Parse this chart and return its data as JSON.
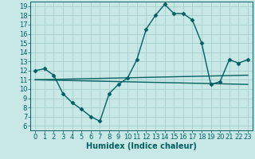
{
  "xlabel": "Humidex (Indice chaleur)",
  "bg_color": "#c8e8e8",
  "grid_color": "#a0c8c8",
  "line_color": "#006060",
  "xlim": [
    -0.5,
    23.5
  ],
  "ylim": [
    5.5,
    19.5
  ],
  "xticks": [
    0,
    1,
    2,
    3,
    4,
    5,
    6,
    7,
    8,
    9,
    10,
    11,
    12,
    13,
    14,
    15,
    16,
    17,
    18,
    19,
    20,
    21,
    22,
    23
  ],
  "yticks": [
    6,
    7,
    8,
    9,
    10,
    11,
    12,
    13,
    14,
    15,
    16,
    17,
    18,
    19
  ],
  "curve1_x": [
    0,
    1,
    2,
    3,
    4,
    5,
    6,
    7,
    8,
    9,
    10,
    11,
    12,
    13,
    14,
    15,
    16,
    17,
    18,
    19,
    20,
    21,
    22,
    23
  ],
  "curve1_y": [
    12.0,
    12.2,
    11.5,
    9.5,
    8.5,
    7.8,
    7.0,
    6.5,
    9.5,
    10.5,
    11.2,
    13.2,
    16.5,
    18.0,
    19.2,
    18.2,
    18.2,
    17.5,
    15.0,
    10.5,
    10.8,
    13.2,
    12.8,
    13.2
  ],
  "curve2_x": [
    0,
    23
  ],
  "curve2_y": [
    11.0,
    11.5
  ],
  "curve3_x": [
    0,
    23
  ],
  "curve3_y": [
    11.0,
    10.5
  ],
  "marker": "D",
  "marker_size": 2.5,
  "line_width": 1.0,
  "font_size": 6.0,
  "xlabel_fontsize": 7.0
}
